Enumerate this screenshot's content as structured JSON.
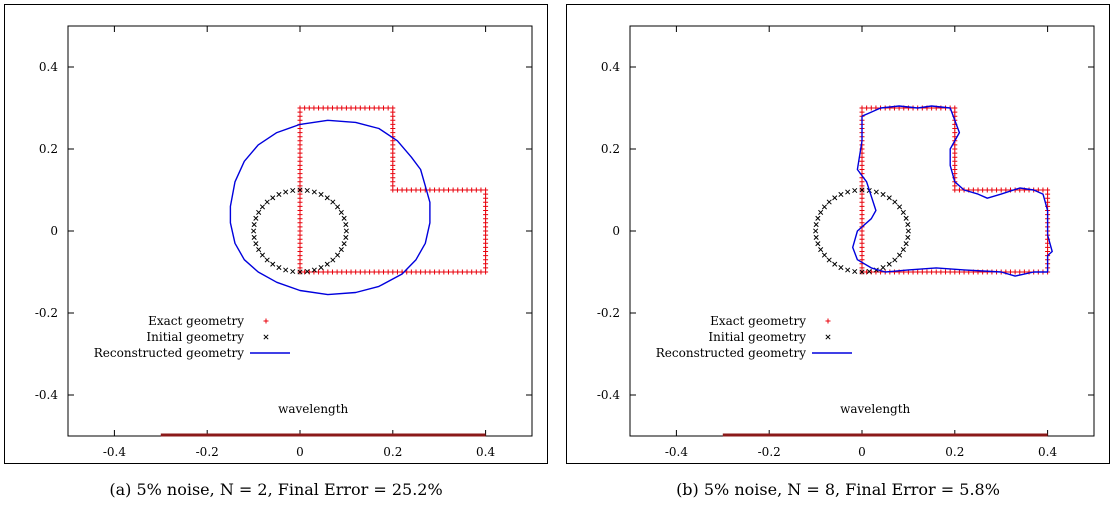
{
  "colors": {
    "exact": "#e8000b",
    "initial": "#000000",
    "reconstructed": "#0000dd",
    "wavelength": "#8b1a1a"
  },
  "panels": [
    {
      "caption": "(a) 5% noise, N = 2, Final Error = 25.2%",
      "legend": {
        "exact": "Exact geometry",
        "initial": "Initial geometry",
        "reconstructed": "Reconstructed geometry"
      },
      "wavelength_label": "wavelength"
    },
    {
      "caption": "(b) 5% noise, N = 8, Final Error = 5.8%",
      "legend": {
        "exact": "Exact geometry",
        "initial": "Initial geometry",
        "reconstructed": "Reconstructed geometry"
      },
      "wavelength_label": "wavelength"
    }
  ],
  "chart_data": [
    {
      "type": "scatter",
      "xlim": [
        -0.5,
        0.5
      ],
      "ylim": [
        -0.5,
        0.5
      ],
      "xticks": [
        "-0.4",
        "-0.2",
        "0",
        "0.2",
        "0.4"
      ],
      "yticks": [
        "0.4",
        "0.2",
        "0",
        "-0.2",
        "-0.4"
      ],
      "grid": false,
      "legend_position": "bottom-left",
      "series": [
        {
          "name": "Exact geometry",
          "style": "markers-plus",
          "vertices": [
            [
              0,
              -0.1
            ],
            [
              0,
              0.3
            ],
            [
              0.2,
              0.3
            ],
            [
              0.2,
              0.1
            ],
            [
              0.4,
              0.1
            ],
            [
              0.4,
              -0.1
            ],
            [
              0,
              -0.1
            ]
          ]
        },
        {
          "name": "Initial geometry",
          "style": "markers-x",
          "circle": {
            "cx": 0,
            "cy": 0,
            "r": 0.1
          }
        },
        {
          "name": "Reconstructed geometry",
          "style": "line",
          "points": [
            [
              0.27,
              0.11
            ],
            [
              0.26,
              0.15
            ],
            [
              0.24,
              0.18
            ],
            [
              0.21,
              0.22
            ],
            [
              0.17,
              0.25
            ],
            [
              0.12,
              0.265
            ],
            [
              0.06,
              0.27
            ],
            [
              0.0,
              0.26
            ],
            [
              -0.05,
              0.24
            ],
            [
              -0.09,
              0.21
            ],
            [
              -0.12,
              0.17
            ],
            [
              -0.14,
              0.12
            ],
            [
              -0.15,
              0.06
            ],
            [
              -0.15,
              0.02
            ],
            [
              -0.14,
              -0.03
            ],
            [
              -0.12,
              -0.07
            ],
            [
              -0.09,
              -0.1
            ],
            [
              -0.05,
              -0.125
            ],
            [
              0.0,
              -0.145
            ],
            [
              0.06,
              -0.155
            ],
            [
              0.12,
              -0.15
            ],
            [
              0.17,
              -0.135
            ],
            [
              0.22,
              -0.105
            ],
            [
              0.25,
              -0.07
            ],
            [
              0.27,
              -0.03
            ],
            [
              0.28,
              0.02
            ],
            [
              0.28,
              0.07
            ],
            [
              0.27,
              0.11
            ]
          ]
        },
        {
          "name": "wavelength",
          "style": "bar",
          "x": [
            -0.3,
            0.4
          ],
          "y": -0.5
        }
      ]
    },
    {
      "type": "scatter",
      "xlim": [
        -0.5,
        0.5
      ],
      "ylim": [
        -0.5,
        0.5
      ],
      "xticks": [
        "-0.4",
        "-0.2",
        "0",
        "0.2",
        "0.4"
      ],
      "yticks": [
        "0.4",
        "0.2",
        "0",
        "-0.2",
        "-0.4"
      ],
      "grid": false,
      "legend_position": "bottom-left",
      "series": [
        {
          "name": "Exact geometry",
          "style": "markers-plus",
          "vertices": [
            [
              0,
              -0.1
            ],
            [
              0,
              0.3
            ],
            [
              0.2,
              0.3
            ],
            [
              0.2,
              0.1
            ],
            [
              0.4,
              0.1
            ],
            [
              0.4,
              -0.1
            ],
            [
              0,
              -0.1
            ]
          ]
        },
        {
          "name": "Initial geometry",
          "style": "markers-x",
          "circle": {
            "cx": 0,
            "cy": 0,
            "r": 0.1
          }
        },
        {
          "name": "Reconstructed geometry",
          "style": "line",
          "points": [
            [
              0.0,
              0.28
            ],
            [
              0.0,
              0.22
            ],
            [
              -0.01,
              0.15
            ],
            [
              0.01,
              0.12
            ],
            [
              0.03,
              0.05
            ],
            [
              0.02,
              0.03
            ],
            [
              -0.01,
              0.0
            ],
            [
              -0.02,
              -0.04
            ],
            [
              -0.01,
              -0.07
            ],
            [
              0.02,
              -0.09
            ],
            [
              0.05,
              -0.1
            ],
            [
              0.1,
              -0.095
            ],
            [
              0.16,
              -0.09
            ],
            [
              0.22,
              -0.095
            ],
            [
              0.3,
              -0.1
            ],
            [
              0.33,
              -0.11
            ],
            [
              0.37,
              -0.1
            ],
            [
              0.4,
              -0.1
            ],
            [
              0.4,
              -0.06
            ],
            [
              0.41,
              -0.05
            ],
            [
              0.4,
              -0.01
            ],
            [
              0.4,
              0.05
            ],
            [
              0.39,
              0.09
            ],
            [
              0.37,
              0.1
            ],
            [
              0.34,
              0.105
            ],
            [
              0.3,
              0.09
            ],
            [
              0.27,
              0.08
            ],
            [
              0.25,
              0.09
            ],
            [
              0.22,
              0.1
            ],
            [
              0.2,
              0.12
            ],
            [
              0.19,
              0.16
            ],
            [
              0.19,
              0.2
            ],
            [
              0.21,
              0.24
            ],
            [
              0.2,
              0.27
            ],
            [
              0.19,
              0.3
            ],
            [
              0.15,
              0.305
            ],
            [
              0.12,
              0.3
            ],
            [
              0.08,
              0.305
            ],
            [
              0.04,
              0.3
            ],
            [
              0.02,
              0.29
            ],
            [
              0.0,
              0.28
            ]
          ]
        },
        {
          "name": "wavelength",
          "style": "bar",
          "x": [
            -0.3,
            0.4
          ],
          "y": -0.5
        }
      ]
    }
  ]
}
